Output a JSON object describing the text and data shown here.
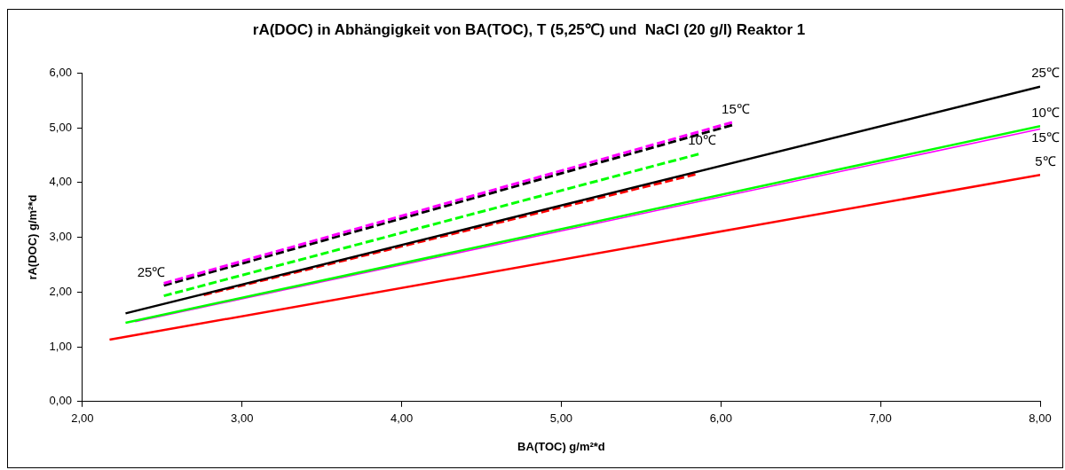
{
  "chart_data": {
    "type": "line",
    "title": "rA(DOC) in Abhängigkeit von BA(TOC), T (5,25℃) und  NaCl (20 g/l) Reaktor 1",
    "xlabel": "BA(TOC) g/m²*d",
    "ylabel": "rA(DOC) g/m²*d",
    "xlim": [
      2,
      8
    ],
    "xticks": [
      {
        "value": 2,
        "label": "2,00"
      },
      {
        "value": 3,
        "label": "3,00"
      },
      {
        "value": 4,
        "label": "4,00"
      },
      {
        "value": 5,
        "label": "5,00"
      },
      {
        "value": 6,
        "label": "6,00"
      },
      {
        "value": 7,
        "label": "7,00"
      },
      {
        "value": 8,
        "label": "8,00"
      }
    ],
    "ylim": [
      0,
      6
    ],
    "yticks": [
      {
        "value": 0,
        "label": "0,00"
      },
      {
        "value": 1,
        "label": "1,00"
      },
      {
        "value": 2,
        "label": "2,00"
      },
      {
        "value": 3,
        "label": "3,00"
      },
      {
        "value": 4,
        "label": "4,00"
      },
      {
        "value": 5,
        "label": "5,00"
      },
      {
        "value": 6,
        "label": "6,00"
      }
    ],
    "grid": false,
    "legend": false,
    "marker": "none",
    "series": [
      {
        "color": "#ff0000",
        "x": [
          2.17,
          8.0
        ],
        "values": [
          1.13,
          4.14
        ],
        "line_style": "solid"
      },
      {
        "color": "#00ff00",
        "x": [
          2.27,
          8.0
        ],
        "values": [
          1.44,
          5.03
        ],
        "line_style": "solid"
      },
      {
        "color": "#ff00ff",
        "x": [
          2.33,
          8.0
        ],
        "values": [
          1.46,
          4.98
        ],
        "line_style": "solid"
      },
      {
        "color": "#000000",
        "x": [
          2.27,
          8.0
        ],
        "values": [
          1.61,
          5.75
        ],
        "line_style": "solid"
      },
      {
        "color": "#ff0000",
        "x": [
          2.76,
          5.84
        ],
        "values": [
          1.95,
          4.15
        ],
        "line_style": "dashed"
      },
      {
        "color": "#00ff00",
        "x": [
          2.51,
          5.86
        ],
        "values": [
          1.93,
          4.52
        ],
        "line_style": "dashed"
      },
      {
        "color": "#ff00ff",
        "x": [
          2.51,
          6.07
        ],
        "values": [
          2.16,
          5.1
        ],
        "line_style": "dashed"
      },
      {
        "color": "#000000",
        "x": [
          2.51,
          6.07
        ],
        "values": [
          2.12,
          5.05
        ],
        "line_style": "dashed"
      }
    ],
    "annotations": [
      {
        "text": "25℃",
        "x": 8.0,
        "y": 5.75
      },
      {
        "text": "10℃",
        "x": 8.0,
        "y": 5.03
      },
      {
        "text": "15℃",
        "x": 8.0,
        "y": 4.98
      },
      {
        "text": "5℃",
        "x": 8.0,
        "y": 4.14
      },
      {
        "text": "25℃",
        "x": 2.51,
        "y": 2.12
      },
      {
        "text": "15℃",
        "x": 6.07,
        "y": 5.1
      },
      {
        "text": "10℃",
        "x": 5.86,
        "y": 4.52
      }
    ]
  }
}
